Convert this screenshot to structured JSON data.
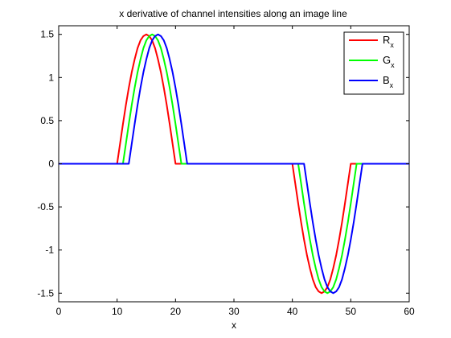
{
  "chart_data": {
    "type": "line",
    "title": "x derivative of channel intensities along an image line",
    "xlabel": "x",
    "ylabel": "",
    "xlim": [
      0,
      60
    ],
    "ylim": [
      -1.6,
      1.6
    ],
    "xticks": [
      0,
      10,
      20,
      30,
      40,
      50,
      60
    ],
    "yticks": [
      -1.5,
      -1,
      -0.5,
      0,
      0.5,
      1,
      1.5
    ],
    "ytick_labels": [
      "-1.5",
      "-1",
      "-0.5",
      "0",
      "0.5",
      "1",
      "1.5"
    ],
    "grid": false,
    "legend_position": "top-right",
    "series": [
      {
        "name": "R",
        "subscript": "x",
        "color": "#ff0000",
        "x": [
          0,
          10,
          10.5,
          11,
          11.5,
          12,
          12.5,
          13,
          13.5,
          14,
          14.5,
          15,
          15.5,
          16,
          16.5,
          17,
          17.5,
          18,
          18.5,
          19,
          19.5,
          20,
          40,
          40.5,
          41,
          41.5,
          42,
          42.5,
          43,
          43.5,
          44,
          44.5,
          45,
          45.5,
          46,
          46.5,
          47,
          47.5,
          48,
          48.5,
          49,
          49.5,
          50,
          60
        ],
        "y": [
          0,
          0,
          0.23,
          0.46,
          0.68,
          0.88,
          1.06,
          1.21,
          1.34,
          1.43,
          1.48,
          1.5,
          1.48,
          1.43,
          1.34,
          1.21,
          1.06,
          0.88,
          0.68,
          0.46,
          0.23,
          0,
          0,
          -0.23,
          -0.46,
          -0.68,
          -0.88,
          -1.06,
          -1.21,
          -1.34,
          -1.43,
          -1.48,
          -1.5,
          -1.48,
          -1.43,
          -1.34,
          -1.21,
          -1.06,
          -0.88,
          -0.68,
          -0.46,
          -0.23,
          0,
          0
        ]
      },
      {
        "name": "G",
        "subscript": "x",
        "color": "#00ff00",
        "x": [
          0,
          11,
          11.5,
          12,
          12.5,
          13,
          13.5,
          14,
          14.5,
          15,
          15.5,
          16,
          16.5,
          17,
          17.5,
          18,
          18.5,
          19,
          19.5,
          20,
          20.5,
          21,
          41,
          41.5,
          42,
          42.5,
          43,
          43.5,
          44,
          44.5,
          45,
          45.5,
          46,
          46.5,
          47,
          47.5,
          48,
          48.5,
          49,
          49.5,
          50,
          50.5,
          51,
          60
        ],
        "y": [
          0,
          0,
          0.23,
          0.46,
          0.68,
          0.88,
          1.06,
          1.21,
          1.34,
          1.43,
          1.48,
          1.5,
          1.48,
          1.43,
          1.34,
          1.21,
          1.06,
          0.88,
          0.68,
          0.46,
          0.23,
          0,
          0,
          -0.23,
          -0.46,
          -0.68,
          -0.88,
          -1.06,
          -1.21,
          -1.34,
          -1.43,
          -1.48,
          -1.5,
          -1.48,
          -1.43,
          -1.34,
          -1.21,
          -1.06,
          -0.88,
          -0.68,
          -0.46,
          -0.23,
          0,
          0
        ]
      },
      {
        "name": "B",
        "subscript": "x",
        "color": "#0000ff",
        "x": [
          0,
          12,
          12.5,
          13,
          13.5,
          14,
          14.5,
          15,
          15.5,
          16,
          16.5,
          17,
          17.5,
          18,
          18.5,
          19,
          19.5,
          20,
          20.5,
          21,
          21.5,
          22,
          42,
          42.5,
          43,
          43.5,
          44,
          44.5,
          45,
          45.5,
          46,
          46.5,
          47,
          47.5,
          48,
          48.5,
          49,
          49.5,
          50,
          50.5,
          51,
          51.5,
          52,
          60
        ],
        "y": [
          0,
          0,
          0.23,
          0.46,
          0.68,
          0.88,
          1.06,
          1.21,
          1.34,
          1.43,
          1.48,
          1.5,
          1.48,
          1.43,
          1.34,
          1.21,
          1.06,
          0.88,
          0.68,
          0.46,
          0.23,
          0,
          0,
          -0.23,
          -0.46,
          -0.68,
          -0.88,
          -1.06,
          -1.21,
          -1.34,
          -1.43,
          -1.48,
          -1.5,
          -1.48,
          -1.43,
          -1.34,
          -1.21,
          -1.06,
          -0.88,
          -0.68,
          -0.46,
          -0.23,
          0,
          0
        ]
      }
    ]
  }
}
